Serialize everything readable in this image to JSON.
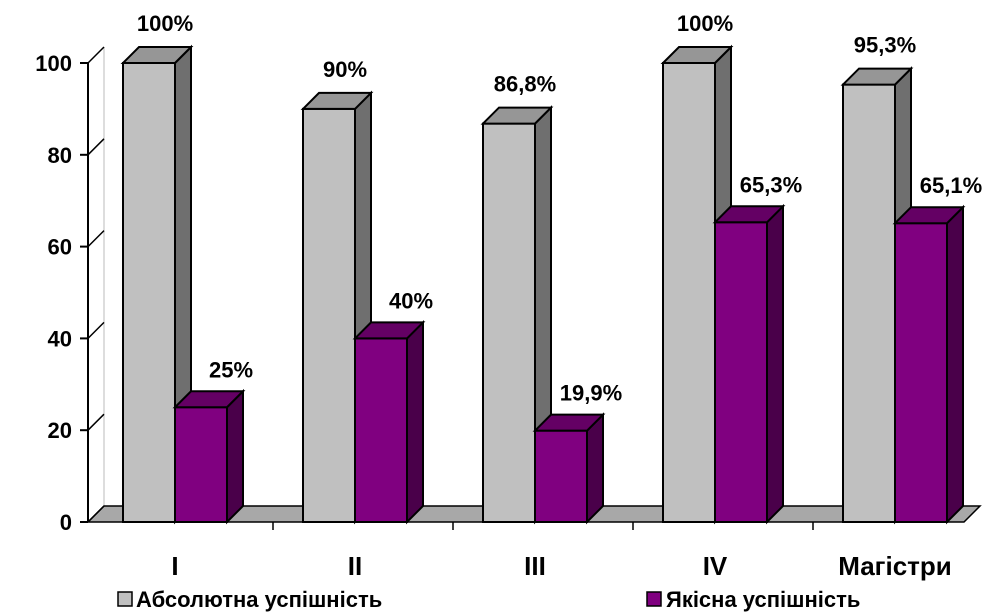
{
  "chart_data": {
    "type": "bar",
    "categories": [
      "I",
      "II",
      "III",
      "IV",
      "Магістри"
    ],
    "series": [
      {
        "name": "Абсолютна успішність",
        "values": [
          100,
          90,
          86.8,
          100,
          95.3
        ],
        "labels": [
          "100%",
          "90%",
          "86,8%",
          "100%",
          "95,3%"
        ],
        "color": "#c0c0c0"
      },
      {
        "name": "Якісна успішність",
        "values": [
          25,
          40,
          19.9,
          65.3,
          65.1
        ],
        "labels": [
          "25%",
          "40%",
          "19,9%",
          "65,3%",
          "65,1%"
        ],
        "color": "#800080"
      }
    ],
    "ylim": [
      0,
      100
    ],
    "yticks": [
      0,
      20,
      40,
      60,
      80,
      100
    ],
    "grid": false,
    "legend_position": "bottom",
    "style": "3d-column"
  }
}
